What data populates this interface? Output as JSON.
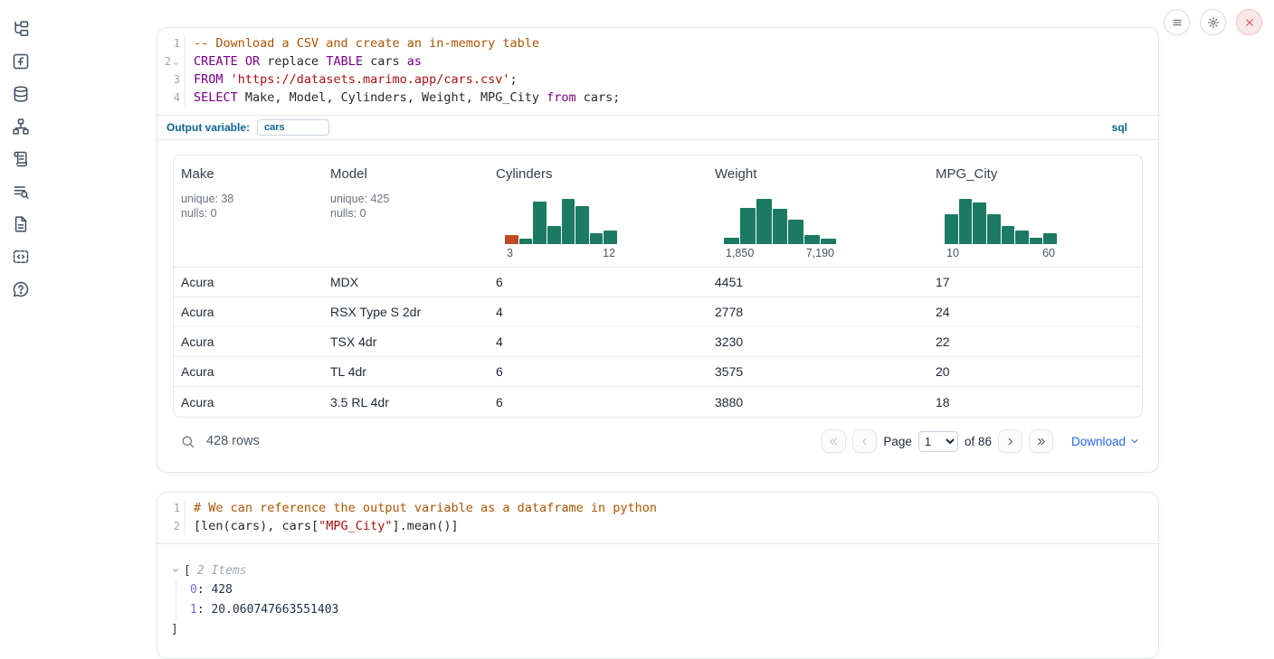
{
  "colors": {
    "accent_blue": "#0b6394",
    "link_blue": "#2563eb",
    "hist_green": "#1b7a63",
    "hist_orange": "#c14a24",
    "syntax_keyword": "#770088",
    "syntax_string": "#aa1111",
    "syntax_comment": "#aa5500",
    "close_red": "#dd4b4b"
  },
  "topbar": {
    "buttons": [
      {
        "id": "menu",
        "icon": "hamburger"
      },
      {
        "id": "settings",
        "icon": "gear"
      },
      {
        "id": "shutdown",
        "icon": "close"
      }
    ]
  },
  "sidebar": {
    "items": [
      {
        "id": "file-explorer",
        "icon": "file-tree"
      },
      {
        "id": "variables",
        "icon": "functions"
      },
      {
        "id": "data-sources",
        "icon": "database"
      },
      {
        "id": "dependency-graph",
        "icon": "dep-graph"
      },
      {
        "id": "scratchpad",
        "icon": "scroll"
      },
      {
        "id": "logs",
        "icon": "list-search"
      },
      {
        "id": "documentation",
        "icon": "document"
      },
      {
        "id": "snippets",
        "icon": "code-block"
      },
      {
        "id": "help",
        "icon": "help-bubble"
      }
    ]
  },
  "cells": [
    {
      "id": "sql-cell",
      "language_badge": "sql",
      "output_variable": {
        "label": "Output variable:",
        "value": "cars"
      },
      "code_lines": [
        {
          "num": "1",
          "fold": false,
          "tokens": [
            {
              "t": "-- Download a CSV and create an in-memory table",
              "c": "cm"
            }
          ]
        },
        {
          "num": "2",
          "fold": true,
          "tokens": [
            {
              "t": "CREATE OR",
              "c": "kw"
            },
            {
              "t": " replace ",
              "c": ""
            },
            {
              "t": "TABLE",
              "c": "kw"
            },
            {
              "t": " cars ",
              "c": ""
            },
            {
              "t": "as",
              "c": "kw"
            }
          ]
        },
        {
          "num": "3",
          "fold": false,
          "tokens": [
            {
              "t": "FROM",
              "c": "kw"
            },
            {
              "t": " ",
              "c": ""
            },
            {
              "t": "'https://datasets.marimo.app/cars.csv'",
              "c": "str"
            },
            {
              "t": ";",
              "c": ""
            }
          ]
        },
        {
          "num": "4",
          "fold": false,
          "tokens": [
            {
              "t": "SELECT",
              "c": "kw"
            },
            {
              "t": " Make, Model, Cylinders, Weight, MPG_City ",
              "c": ""
            },
            {
              "t": "from",
              "c": "kw"
            },
            {
              "t": " cars;",
              "c": ""
            }
          ]
        }
      ],
      "table": {
        "columns": [
          {
            "name": "Make",
            "stats": [
              "unique: 38",
              "nulls: 0"
            ]
          },
          {
            "name": "Model",
            "stats": [
              "unique: 425",
              "nulls: 0"
            ]
          },
          {
            "name": "Cylinders",
            "histogram": {
              "bars": [
                10,
                6,
                47,
                20,
                50,
                42,
                12,
                15
              ],
              "highlight_index": 0,
              "labels": [
                "3",
                "12"
              ]
            }
          },
          {
            "name": "Weight",
            "histogram": {
              "bars": [
                7,
                40,
                50,
                39,
                27,
                10,
                6
              ],
              "highlight_index": -1,
              "labels": [
                "1,850",
                "7,190"
              ]
            }
          },
          {
            "name": "MPG_City",
            "histogram": {
              "bars": [
                33,
                50,
                46,
                33,
                20,
                15,
                7,
                12
              ],
              "highlight_index": -1,
              "labels": [
                "10",
                "60"
              ]
            }
          }
        ],
        "rows": [
          [
            "Acura",
            "MDX",
            "6",
            "4451",
            "17"
          ],
          [
            "Acura",
            "RSX Type S 2dr",
            "4",
            "2778",
            "24"
          ],
          [
            "Acura",
            "TSX 4dr",
            "4",
            "3230",
            "22"
          ],
          [
            "Acura",
            "TL 4dr",
            "6",
            "3575",
            "20"
          ],
          [
            "Acura",
            "3.5 RL 4dr",
            "6",
            "3880",
            "18"
          ]
        ],
        "row_count": "428 rows",
        "pagination": {
          "page_label": "Page",
          "page_value": "1",
          "of_label": "of 86",
          "download": "Download"
        }
      }
    },
    {
      "id": "python-cell",
      "code_lines": [
        {
          "num": "1",
          "fold": false,
          "tokens": [
            {
              "t": "# We can reference the output variable as a dataframe in python",
              "c": "cm"
            }
          ]
        },
        {
          "num": "2",
          "fold": false,
          "tokens": [
            {
              "t": "[len(cars), cars[",
              "c": ""
            },
            {
              "t": "\"MPG_City\"",
              "c": "str"
            },
            {
              "t": "].mean()]",
              "c": ""
            }
          ]
        }
      ],
      "result": {
        "open": "[",
        "count_label": "2 Items",
        "entries": [
          {
            "key": "0",
            "value": "428"
          },
          {
            "key": "1",
            "value": "20.060747663551403"
          }
        ],
        "close": "]"
      }
    }
  ]
}
